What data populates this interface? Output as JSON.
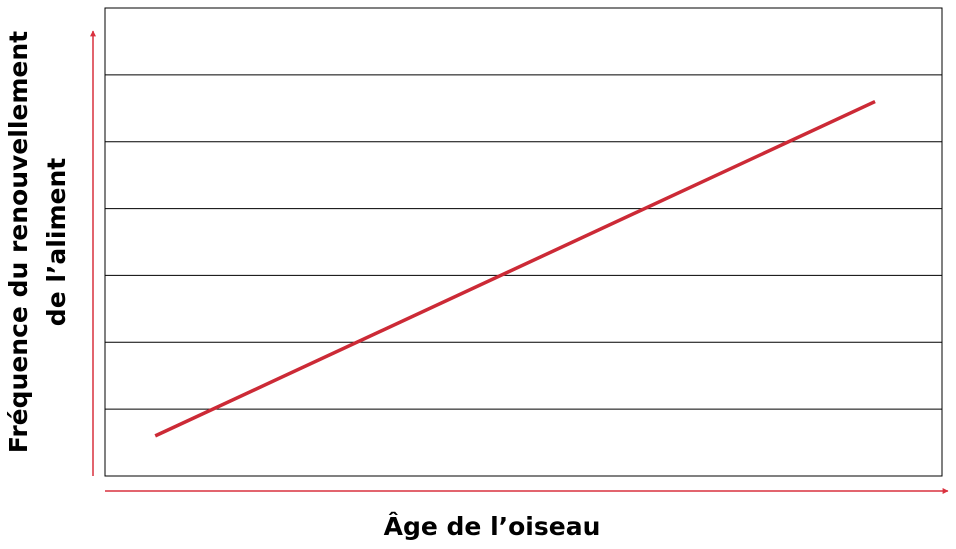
{
  "chart_data": {
    "type": "line",
    "ylabel": [
      "Fréquence du renouvellement",
      "de l’aliment"
    ],
    "xlabel": "Âge de l’oiseau",
    "x": [
      0.6,
      9.2
    ],
    "series": [
      {
        "color": "#cc2a36",
        "values": [
          0.6,
          5.6
        ]
      }
    ],
    "xlim": [
      0,
      10
    ],
    "ylim": [
      0,
      7
    ],
    "yticks": [
      0,
      1,
      2,
      3,
      4,
      5,
      6,
      7
    ],
    "grid": true,
    "axis_color": "#d9313f"
  }
}
